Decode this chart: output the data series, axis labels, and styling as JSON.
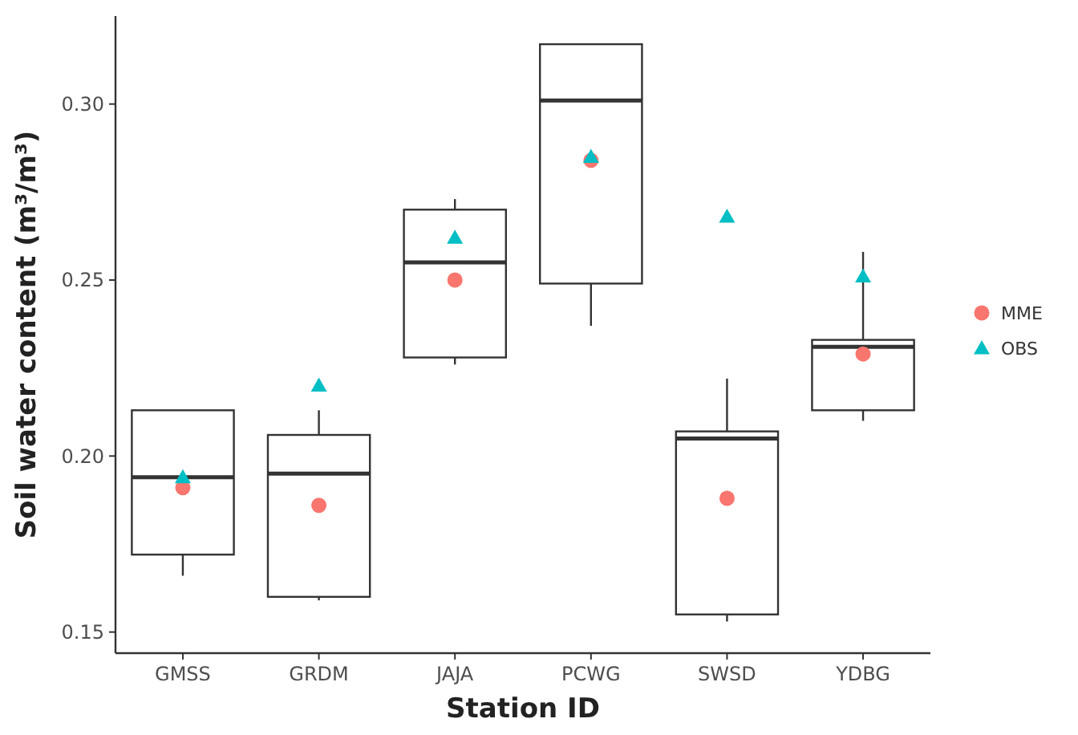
{
  "chart_data": {
    "type": "box",
    "xlabel": "Station ID",
    "ylabel": "Soil water content (m³/m³)",
    "categories": [
      "GMSS",
      "GRDM",
      "JAJA",
      "PCWG",
      "SWSD",
      "YDBG"
    ],
    "ylim": [
      0.144,
      0.325
    ],
    "yticks": [
      {
        "value": 0.15,
        "label": "0.15"
      },
      {
        "value": 0.2,
        "label": "0.20"
      },
      {
        "value": 0.25,
        "label": "0.25"
      },
      {
        "value": 0.3,
        "label": "0.30"
      }
    ],
    "grid": false,
    "legend": "right",
    "boxes": [
      {
        "low": 0.166,
        "q1": 0.172,
        "median": 0.194,
        "q3": 0.213,
        "high": 0.213
      },
      {
        "low": 0.159,
        "q1": 0.16,
        "median": 0.195,
        "q3": 0.206,
        "high": 0.213
      },
      {
        "low": 0.226,
        "q1": 0.228,
        "median": 0.255,
        "q3": 0.27,
        "high": 0.273
      },
      {
        "low": 0.237,
        "q1": 0.249,
        "median": 0.301,
        "q3": 0.317,
        "high": 0.317
      },
      {
        "low": 0.153,
        "q1": 0.155,
        "median": 0.205,
        "q3": 0.207,
        "high": 0.222
      },
      {
        "low": 0.21,
        "q1": 0.213,
        "median": 0.231,
        "q3": 0.233,
        "high": 0.258
      }
    ],
    "series": [
      {
        "name": "MME",
        "type": "scatter",
        "marker": "circle",
        "color": "#f8766d",
        "x": [
          "GMSS",
          "GRDM",
          "JAJA",
          "PCWG",
          "SWSD",
          "YDBG"
        ],
        "values": [
          0.191,
          0.186,
          0.25,
          0.284,
          0.188,
          0.229
        ]
      },
      {
        "name": "OBS",
        "type": "scatter",
        "marker": "triangle",
        "color": "#00bfc4",
        "x": [
          "GMSS",
          "GRDM",
          "JAJA",
          "PCWG",
          "SWSD",
          "YDBG"
        ],
        "values": [
          0.194,
          0.22,
          0.262,
          0.285,
          0.268,
          0.251
        ]
      }
    ]
  }
}
